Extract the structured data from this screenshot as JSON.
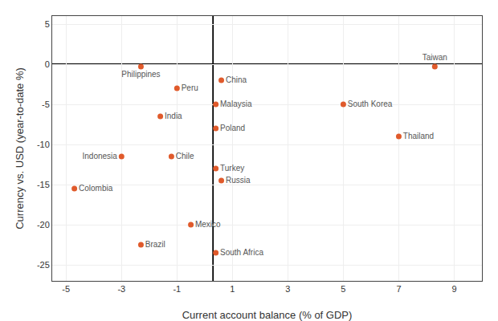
{
  "chart_data": {
    "type": "scatter",
    "labels": [
      "Taiwan",
      "China",
      "Peru",
      "Philippines",
      "Malaysia",
      "India",
      "South Korea",
      "Poland",
      "Thailand",
      "Indonesia",
      "Chile",
      "Turkey",
      "Russia",
      "Colombia",
      "Mexico",
      "Brazil",
      "South Africa"
    ],
    "x": [
      8.3,
      0.6,
      -1.0,
      -2.3,
      0.4,
      -1.6,
      5.0,
      0.4,
      7.0,
      -3.0,
      -1.2,
      0.4,
      0.6,
      -4.7,
      -0.5,
      -2.3,
      0.4
    ],
    "values": [
      -0.3,
      -2.0,
      -3.0,
      -0.3,
      -5.0,
      -6.5,
      -5.0,
      -8.0,
      -9.0,
      -11.5,
      -11.5,
      -13.0,
      -14.5,
      -15.5,
      -20.0,
      -22.5,
      -23.5
    ],
    "color": "#e05a2b",
    "hline_y": 0,
    "vline_x": 0.3,
    "xlim": [
      -5.5,
      10.0
    ],
    "ylim": [
      -27,
      6
    ],
    "xticks": [
      -5,
      -3,
      -1,
      1,
      3,
      5,
      7,
      9
    ],
    "yticks": [
      5,
      0,
      -5,
      -10,
      -15,
      -20,
      -25
    ],
    "xlabel": "Current account balance (% of GDP)",
    "ylabel": "Currency vs. USD (year-to-date %)",
    "grid": true
  }
}
